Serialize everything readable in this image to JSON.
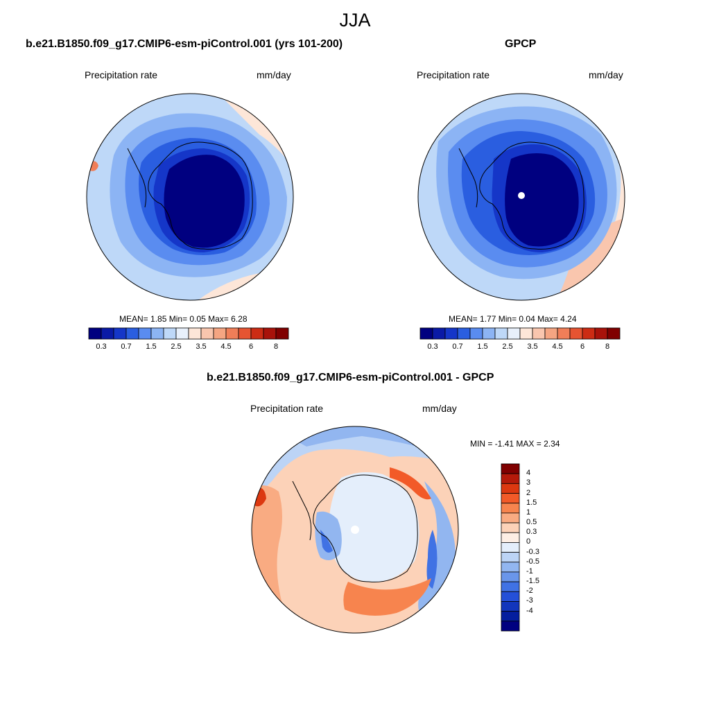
{
  "figure": {
    "title": "JJA",
    "left": {
      "title": "b.e21.B1850.f09_g17.CMIP6-esm-piControl.001 (yrs 101-200)",
      "variable": "Precipitation rate",
      "units": "mm/day",
      "stats": {
        "mean_label": "MEAN=",
        "mean": "1.85",
        "min_label": "Min=",
        "min": "0.05",
        "max_label": "Max=",
        "max": "6.28"
      }
    },
    "right": {
      "title": "GPCP",
      "variable": "Precipitation rate",
      "units": "mm/day",
      "stats": {
        "mean_label": "MEAN=",
        "mean": "1.77",
        "min_label": "Min=",
        "min": "0.04",
        "max_label": "Max=",
        "max": "4.24"
      }
    },
    "diff": {
      "title": "b.e21.B1850.f09_g17.CMIP6-esm-piControl.001 - GPCP",
      "variable": "Precipitation rate",
      "units": "mm/day",
      "stats": {
        "min_label": "MIN =",
        "min": "-1.41",
        "max_label": "MAX =",
        "max": "2.34"
      }
    },
    "colorbar_abs": {
      "colors": [
        "#000080",
        "#0a1aa6",
        "#1536c8",
        "#2a5ee0",
        "#5a8cf0",
        "#8cb4f4",
        "#bed8f8",
        "#e8f0fb",
        "#fde6d8",
        "#f9c6ae",
        "#f5a582",
        "#f07e58",
        "#e65432",
        "#cc2c14",
        "#a8120a",
        "#800000"
      ],
      "tick_labels": [
        "0.3",
        "0.7",
        "1.5",
        "2.5",
        "3.5",
        "4.5",
        "6",
        "8"
      ]
    },
    "colorbar_diff": {
      "colors": [
        "#800000",
        "#b41a0a",
        "#dc3810",
        "#f25a28",
        "#f7844e",
        "#f9ab82",
        "#fcd2b8",
        "#fdeee4",
        "#e4eefb",
        "#bcd4f6",
        "#92b6f0",
        "#6a96ea",
        "#4072e4",
        "#2450d8",
        "#1236bc",
        "#041e9e",
        "#000080"
      ],
      "tick_labels": [
        "4",
        "3",
        "2",
        "1.5",
        "1",
        "0.5",
        "0.3",
        "0",
        "-0.3",
        "-0.5",
        "-1",
        "-1.5",
        "-2",
        "-3",
        "-4"
      ]
    }
  }
}
